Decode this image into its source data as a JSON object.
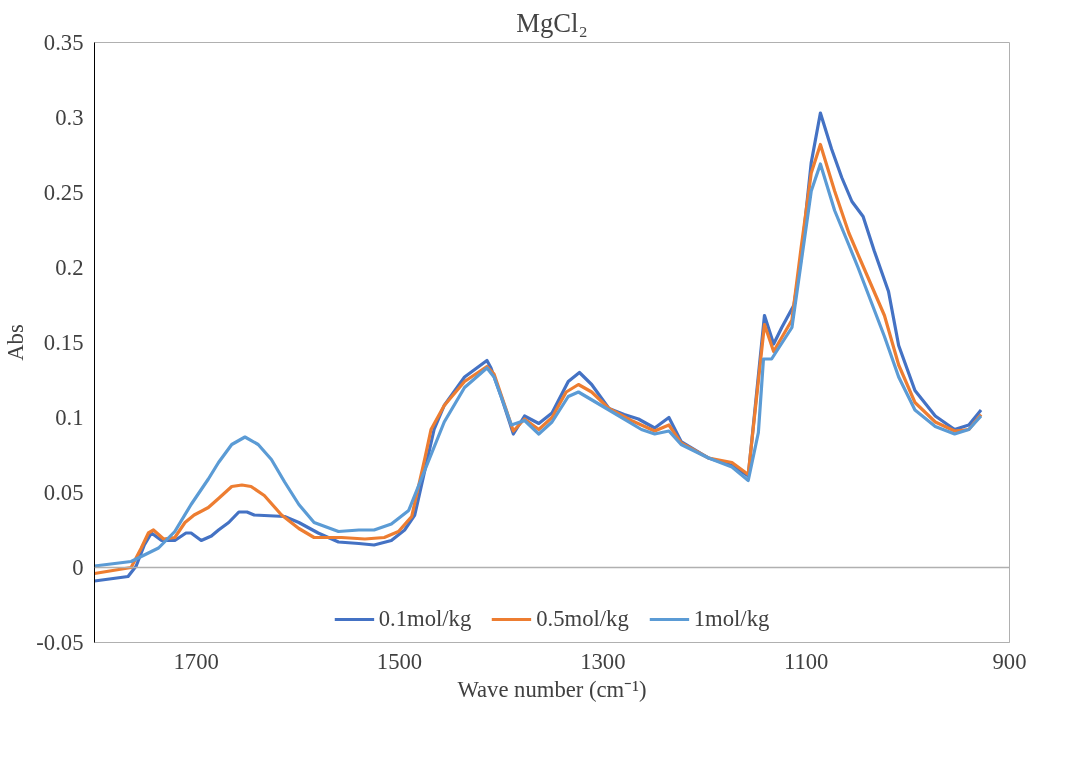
{
  "chart_data": {
    "type": "line",
    "title": "MgCl₂",
    "xlabel": "Wave number (cm⁻¹)",
    "ylabel": "Abs",
    "xlim": [
      1800,
      900
    ],
    "xticks": [
      1700,
      1500,
      1300,
      1100,
      900
    ],
    "ylim": [
      -0.05,
      0.35
    ],
    "yticks": [
      -0.05,
      0,
      0.05,
      0.1,
      0.15,
      0.2,
      0.25,
      0.3,
      0.35
    ],
    "grid": false,
    "legend": "bottom",
    "ref_lines": [
      {
        "axis": "y",
        "value": 0,
        "color": "#b0b0b0"
      }
    ],
    "marker": "none",
    "line_style": "solid",
    "series": [
      {
        "name": "0.1mol/kg",
        "color": "#4472c4",
        "x": [
          1800,
          1767,
          1759,
          1751,
          1744,
          1734,
          1721,
          1710,
          1705,
          1695,
          1685,
          1678,
          1668,
          1658,
          1650,
          1643,
          1613,
          1599,
          1580,
          1560,
          1540,
          1525,
          1508,
          1495,
          1485,
          1466,
          1456,
          1436,
          1414,
          1410,
          1400,
          1388,
          1377,
          1363,
          1350,
          1334,
          1323,
          1311,
          1294,
          1279,
          1265,
          1249,
          1235,
          1223,
          1196,
          1173,
          1157,
          1151,
          1141,
          1132,
          1124,
          1112,
          1105,
          1095,
          1086,
          1075,
          1065,
          1055,
          1044,
          1033,
          1019,
          1009,
          993,
          973,
          954,
          940,
          928
        ],
        "values": [
          -0.009,
          -0.006,
          0.001,
          0.015,
          0.023,
          0.018,
          0.018,
          0.023,
          0.023,
          0.018,
          0.021,
          0.025,
          0.03,
          0.037,
          0.037,
          0.035,
          0.034,
          0.03,
          0.023,
          0.017,
          0.016,
          0.015,
          0.018,
          0.025,
          0.035,
          0.092,
          0.108,
          0.127,
          0.138,
          0.133,
          0.114,
          0.089,
          0.101,
          0.096,
          0.103,
          0.124,
          0.13,
          0.122,
          0.106,
          0.102,
          0.099,
          0.093,
          0.1,
          0.084,
          0.073,
          0.068,
          0.061,
          0.101,
          0.168,
          0.149,
          0.16,
          0.175,
          0.206,
          0.27,
          0.303,
          0.279,
          0.26,
          0.244,
          0.234,
          0.211,
          0.184,
          0.148,
          0.118,
          0.101,
          0.092,
          0.095,
          0.105
        ]
      },
      {
        "name": "0.5mol/kg",
        "color": "#ed7d31",
        "x": [
          1800,
          1764,
          1754,
          1747,
          1742,
          1732,
          1721,
          1711,
          1702,
          1688,
          1678,
          1665,
          1655,
          1646,
          1633,
          1616,
          1599,
          1584,
          1557,
          1534,
          1515,
          1501,
          1488,
          1475,
          1469,
          1456,
          1436,
          1414,
          1407,
          1388,
          1377,
          1363,
          1350,
          1336,
          1324,
          1311,
          1294,
          1272,
          1249,
          1235,
          1223,
          1196,
          1173,
          1157,
          1141,
          1132,
          1114,
          1105,
          1095,
          1086,
          1072,
          1058,
          1046,
          1023,
          1009,
          993,
          973,
          954,
          940,
          928
        ],
        "values": [
          -0.004,
          0.0,
          0.013,
          0.023,
          0.025,
          0.019,
          0.02,
          0.03,
          0.035,
          0.04,
          0.046,
          0.054,
          0.055,
          0.054,
          0.048,
          0.035,
          0.026,
          0.02,
          0.02,
          0.019,
          0.02,
          0.024,
          0.034,
          0.073,
          0.092,
          0.108,
          0.124,
          0.134,
          0.129,
          0.091,
          0.099,
          0.092,
          0.1,
          0.117,
          0.122,
          0.117,
          0.106,
          0.098,
          0.091,
          0.095,
          0.083,
          0.073,
          0.07,
          0.062,
          0.162,
          0.144,
          0.165,
          0.213,
          0.263,
          0.282,
          0.251,
          0.223,
          0.204,
          0.168,
          0.135,
          0.11,
          0.097,
          0.091,
          0.092,
          0.102
        ]
      },
      {
        "name": "1mol/kg",
        "color": "#5b9bd5",
        "x": [
          1800,
          1764,
          1737,
          1721,
          1705,
          1688,
          1678,
          1665,
          1652,
          1639,
          1626,
          1613,
          1599,
          1584,
          1560,
          1540,
          1525,
          1508,
          1491,
          1475,
          1456,
          1436,
          1414,
          1407,
          1390,
          1377,
          1363,
          1350,
          1334,
          1324,
          1294,
          1262,
          1249,
          1235,
          1223,
          1196,
          1173,
          1157,
          1147,
          1142,
          1134,
          1114,
          1105,
          1095,
          1086,
          1072,
          1058,
          1049,
          1023,
          1009,
          993,
          973,
          954,
          940,
          928
        ],
        "values": [
          0.001,
          0.004,
          0.013,
          0.024,
          0.042,
          0.059,
          0.07,
          0.082,
          0.087,
          0.082,
          0.072,
          0.057,
          0.042,
          0.03,
          0.024,
          0.025,
          0.025,
          0.029,
          0.038,
          0.065,
          0.097,
          0.12,
          0.133,
          0.127,
          0.095,
          0.098,
          0.089,
          0.097,
          0.114,
          0.117,
          0.105,
          0.092,
          0.089,
          0.091,
          0.082,
          0.073,
          0.067,
          0.058,
          0.09,
          0.139,
          0.139,
          0.16,
          0.203,
          0.251,
          0.269,
          0.238,
          0.215,
          0.2,
          0.154,
          0.127,
          0.105,
          0.094,
          0.089,
          0.092,
          0.101
        ]
      }
    ]
  }
}
